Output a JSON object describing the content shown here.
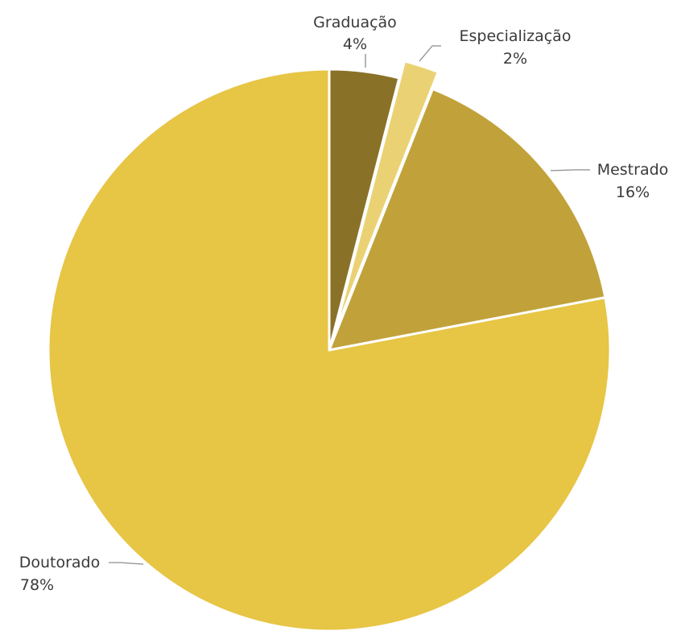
{
  "chart_data": {
    "type": "pie",
    "categories": [
      "Graduação",
      "Especialização",
      "Mestrado",
      "Doutorado"
    ],
    "values": [
      4,
      2,
      16,
      78
    ],
    "value_labels": [
      "4%",
      "2%",
      "16%",
      "78%"
    ],
    "colors": [
      "#8a7128",
      "#ead274",
      "#c1a23a",
      "#e7c545"
    ],
    "exploded": [
      "Especialização"
    ],
    "start_angle": "12 o'clock",
    "direction": "clockwise",
    "legend": "none"
  }
}
